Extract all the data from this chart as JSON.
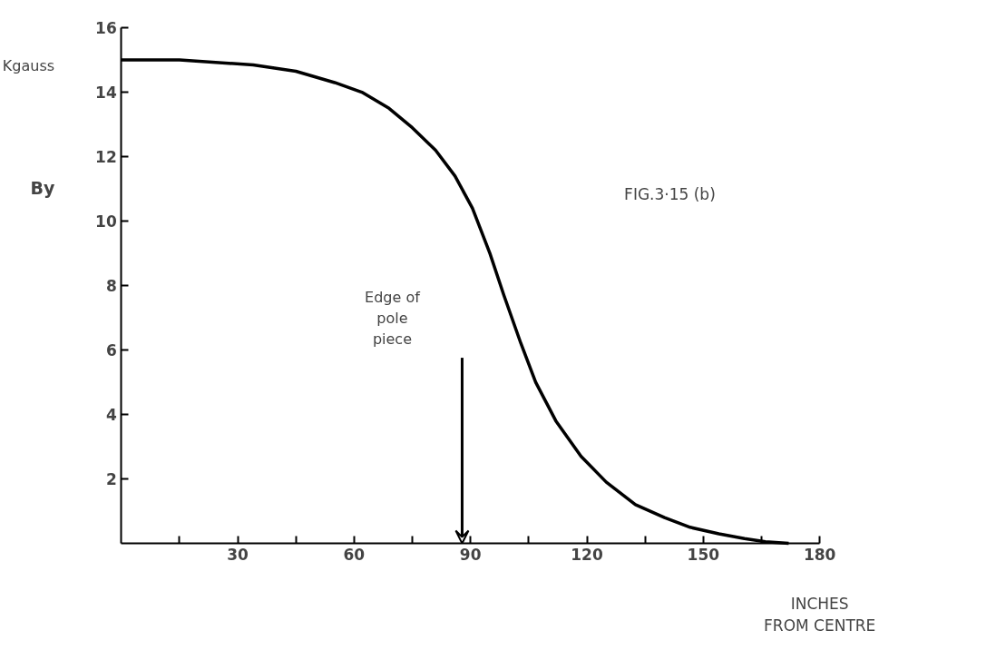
{
  "chart_data": {
    "type": "line",
    "ylabel": "By",
    "xlabel": "INCHES FROM CENTRE",
    "annotations": [
      "Kgauss",
      "FIG.3·15 (b)",
      "Edge of pole piece"
    ],
    "x": [
      0,
      15,
      34,
      45,
      55,
      62,
      69,
      75,
      81,
      86,
      90.5,
      95,
      98.6,
      103,
      106.8,
      112,
      118.5,
      125,
      132.5,
      140,
      146.6,
      154,
      160.6,
      166,
      172
    ],
    "series": [
      {
        "color": "#000000",
        "values": [
          15.0,
          15.0,
          14.85,
          14.65,
          14.3,
          14.0,
          13.5,
          12.9,
          12.2,
          11.4,
          10.4,
          9.0,
          7.7,
          6.2,
          5.0,
          3.8,
          2.7,
          1.9,
          1.2,
          0.8,
          0.5,
          0.3,
          0.15,
          0.05,
          0
        ]
      }
    ],
    "xlim": [
      0,
      180
    ],
    "ylim": [
      0,
      16
    ],
    "xticks": [
      {
        "value": 15,
        "label": null
      },
      30,
      {
        "value": 45,
        "label": null
      },
      60,
      {
        "value": 75,
        "label": null
      },
      90,
      {
        "value": 105,
        "label": null
      },
      120,
      {
        "value": 135,
        "label": null
      },
      150,
      {
        "value": 165,
        "label": null
      },
      180
    ],
    "yticks": [
      2,
      4,
      6,
      8,
      10,
      12,
      14,
      16
    ],
    "grid": false,
    "marker": "none",
    "line_style": "solid"
  }
}
